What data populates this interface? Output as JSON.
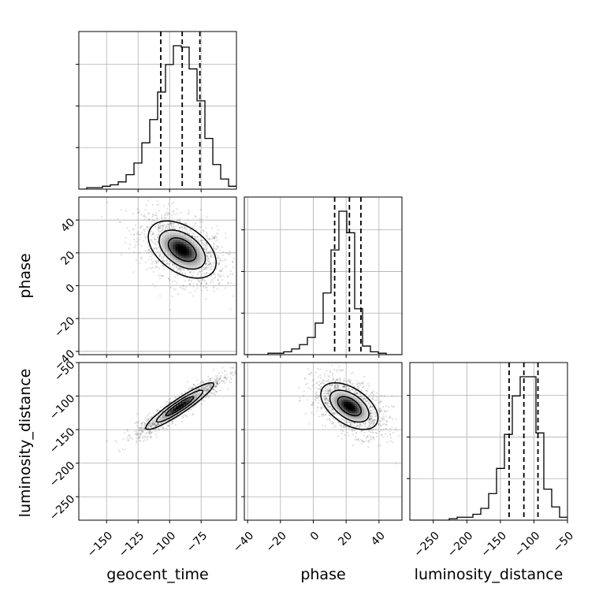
{
  "chart_data": {
    "type": "corner",
    "parameters": [
      "geocent_time",
      "phase",
      "luminosity_distance"
    ],
    "axis_labels": [
      "geocent_time",
      "phase",
      "luminosity_distance"
    ],
    "ranges": [
      [
        -172,
        -47
      ],
      [
        -42,
        54
      ],
      [
        -285,
        -50
      ]
    ],
    "ticks": [
      {
        "values": [
          -150,
          -125,
          -100,
          -75
        ],
        "labels": [
          "−150",
          "−125",
          "−100",
          "−75"
        ]
      },
      {
        "values": [
          -40,
          -20,
          0,
          20,
          40
        ],
        "labels": [
          "−40",
          "−20",
          "0",
          "20",
          "40"
        ]
      },
      {
        "values": [
          -250,
          -200,
          -150,
          -100,
          -50
        ],
        "labels": [
          "−250",
          "−200",
          "−150",
          "−100",
          "−50"
        ]
      }
    ],
    "quantiles": [
      [
        -107,
        -90,
        -76
      ],
      [
        13,
        22,
        29
      ],
      [
        -137,
        -115,
        -94
      ]
    ],
    "histograms": [
      {
        "bins_start": -172,
        "bin_width": 6.25,
        "counts": [
          0,
          1,
          1,
          2,
          3,
          5,
          10,
          18,
          32,
          48,
          67,
          86,
          99,
          98,
          83,
          61,
          35,
          17,
          7,
          2
        ]
      },
      {
        "bins_start": -42,
        "bin_width": 4.8,
        "counts": [
          0,
          0,
          0,
          1,
          1,
          2,
          4,
          7,
          12,
          22,
          43,
          73,
          100,
          85,
          32,
          6,
          2,
          1,
          0,
          0
        ]
      },
      {
        "bins_start": -285,
        "bin_width": 11.75,
        "counts": [
          0,
          0,
          0,
          0,
          0,
          1,
          2,
          2,
          4,
          8,
          18,
          35,
          58,
          84,
          97,
          97,
          59,
          21,
          9,
          2
        ]
      }
    ],
    "joint_2d": [
      {
        "x": "geocent_time",
        "y": "phase",
        "mean": [
          -90,
          22
        ],
        "sd": [
          17,
          11
        ],
        "corr": -0.45
      },
      {
        "x": "geocent_time",
        "y": "luminosity_distance",
        "mean": [
          -92,
          -115
        ],
        "sd": [
          17,
          22
        ],
        "corr": 0.93
      },
      {
        "x": "phase",
        "y": "luminosity_distance",
        "mean": [
          22,
          -115
        ],
        "sd": [
          11,
          22
        ],
        "corr": -0.5
      }
    ],
    "grid": true
  }
}
